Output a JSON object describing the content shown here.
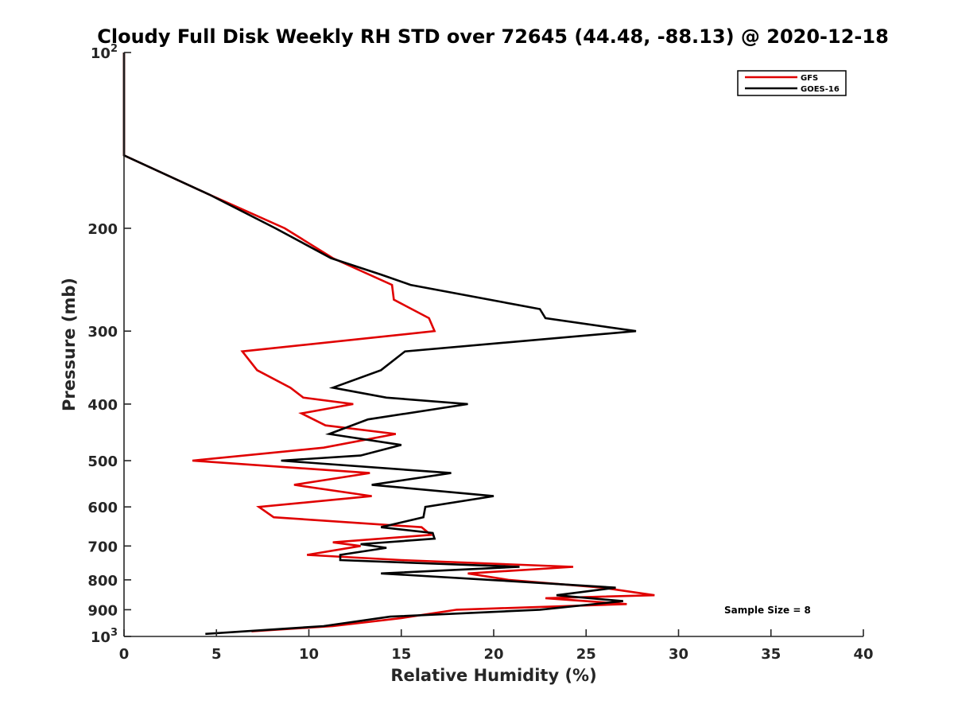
{
  "chart_data": {
    "type": "line",
    "title": "Cloudy Full Disk Weekly RH STD over 72645 (44.48, -88.13) @ 2020-12-18",
    "xlabel": "Relative Humidity (%)",
    "ylabel": "Pressure (mb)",
    "xlim": [
      0,
      40
    ],
    "ylim": [
      100,
      1000
    ],
    "yscale": "log",
    "y_reversed": true,
    "grid": false,
    "legend_position": "top-right",
    "x_ticks": [
      0,
      5,
      10,
      15,
      20,
      25,
      30,
      35,
      40
    ],
    "x_tick_labels": [
      "0",
      "5",
      "10",
      "15",
      "20",
      "25",
      "30",
      "35",
      "40"
    ],
    "y_ticks": [
      100,
      200,
      300,
      400,
      500,
      600,
      700,
      800,
      900,
      1000
    ],
    "y_tick_labels": [
      {
        "base": "10",
        "sup": "2"
      },
      {
        "base": "200",
        "sup": ""
      },
      {
        "base": "300",
        "sup": ""
      },
      {
        "base": "400",
        "sup": ""
      },
      {
        "base": "500",
        "sup": ""
      },
      {
        "base": "600",
        "sup": ""
      },
      {
        "base": "700",
        "sup": ""
      },
      {
        "base": "800",
        "sup": ""
      },
      {
        "base": "900",
        "sup": ""
      },
      {
        "base": "10",
        "sup": "3"
      }
    ],
    "annotation": "Sample Size = 8",
    "series": [
      {
        "name": "GFS",
        "color": "#e00000",
        "points": [
          [
            0,
            100
          ],
          [
            0,
            150
          ],
          [
            4.6,
            175
          ],
          [
            8.7,
            200
          ],
          [
            11.3,
            225
          ],
          [
            14.5,
            250
          ],
          [
            14.6,
            265
          ],
          [
            16.5,
            285
          ],
          [
            16.8,
            300
          ],
          [
            6.4,
            325
          ],
          [
            7.2,
            350
          ],
          [
            9.0,
            375
          ],
          [
            9.7,
            390
          ],
          [
            12.4,
            400
          ],
          [
            9.6,
            415
          ],
          [
            10.9,
            435
          ],
          [
            14.7,
            450
          ],
          [
            10.8,
            475
          ],
          [
            3.7,
            500
          ],
          [
            13.3,
            525
          ],
          [
            9.2,
            550
          ],
          [
            13.4,
            575
          ],
          [
            7.3,
            600
          ],
          [
            8.1,
            625
          ],
          [
            16.1,
            650
          ],
          [
            16.6,
            670
          ],
          [
            11.3,
            690
          ],
          [
            12.8,
            700
          ],
          [
            9.9,
            725
          ],
          [
            15.0,
            740
          ],
          [
            24.3,
            760
          ],
          [
            18.6,
            780
          ],
          [
            20.8,
            800
          ],
          [
            25.9,
            825
          ],
          [
            28.7,
            850
          ],
          [
            22.8,
            860
          ],
          [
            27.2,
            880
          ],
          [
            18.0,
            900
          ],
          [
            15.0,
            930
          ],
          [
            11.3,
            960
          ],
          [
            6.9,
            980
          ]
        ]
      },
      {
        "name": "GOES-16",
        "color": "#000000",
        "points": [
          [
            0,
            100
          ],
          [
            0,
            150
          ],
          [
            4.6,
            175
          ],
          [
            8.2,
            200
          ],
          [
            11.2,
            225
          ],
          [
            13.9,
            240
          ],
          [
            15.5,
            250
          ],
          [
            22.5,
            275
          ],
          [
            22.8,
            285
          ],
          [
            27.7,
            300
          ],
          [
            15.2,
            325
          ],
          [
            13.9,
            350
          ],
          [
            11.3,
            375
          ],
          [
            14.2,
            390
          ],
          [
            18.6,
            400
          ],
          [
            13.2,
            425
          ],
          [
            11.1,
            450
          ],
          [
            15.0,
            470
          ],
          [
            12.8,
            490
          ],
          [
            8.5,
            500
          ],
          [
            17.7,
            525
          ],
          [
            13.4,
            550
          ],
          [
            20.0,
            575
          ],
          [
            16.3,
            600
          ],
          [
            16.2,
            625
          ],
          [
            13.9,
            650
          ],
          [
            16.7,
            665
          ],
          [
            16.8,
            680
          ],
          [
            12.8,
            695
          ],
          [
            14.2,
            705
          ],
          [
            11.7,
            725
          ],
          [
            11.7,
            740
          ],
          [
            21.4,
            760
          ],
          [
            13.9,
            780
          ],
          [
            19.8,
            800
          ],
          [
            26.6,
            825
          ],
          [
            23.4,
            850
          ],
          [
            27.0,
            870
          ],
          [
            22.5,
            900
          ],
          [
            14.4,
            925
          ],
          [
            10.8,
            960
          ],
          [
            4.4,
            990
          ]
        ]
      }
    ]
  }
}
